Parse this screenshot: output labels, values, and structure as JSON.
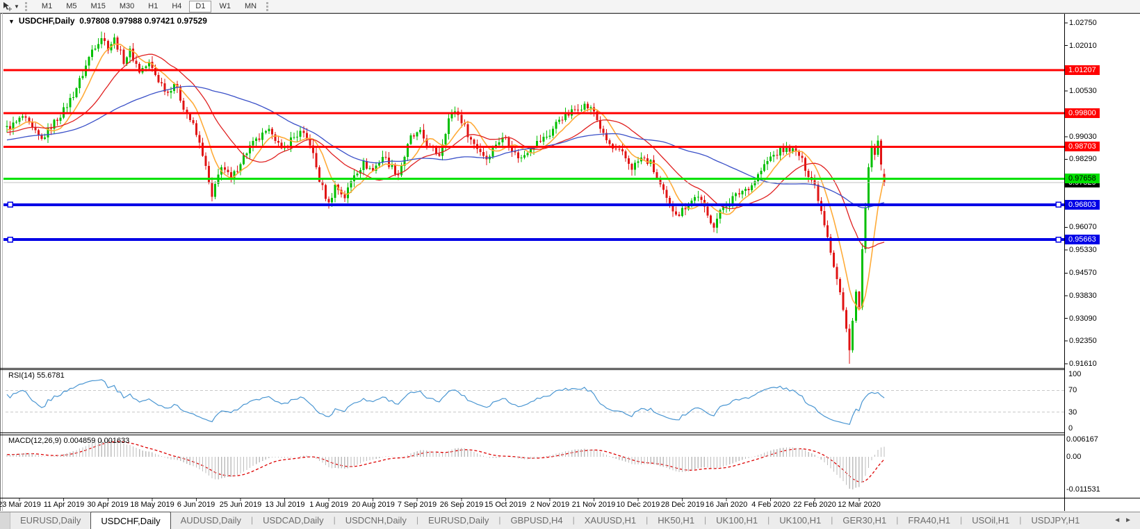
{
  "toolbar": {
    "tool_icon": "cursor-crosshair-icon",
    "dropdown_icon": "caret-down-icon",
    "timeframes": [
      "M1",
      "M5",
      "M15",
      "M30",
      "H1",
      "H4",
      "D1",
      "W1",
      "MN"
    ],
    "active_timeframe": "D1"
  },
  "chart": {
    "title": {
      "symbol": "USDCHF,Daily",
      "open": "0.97808",
      "high": "0.97988",
      "low": "0.97421",
      "close": "0.97529"
    },
    "price_axis": {
      "ticks": [
        "1.02750",
        "1.02010",
        "1.00530",
        "0.99030",
        "0.98290",
        "0.96070",
        "0.95330",
        "0.94570",
        "0.93830",
        "0.93090",
        "0.92350",
        "0.91610"
      ]
    },
    "hlines": [
      {
        "label": "1.01207",
        "price": 1.01207,
        "color": "#ff0000",
        "text_color": "#ffffff",
        "width": 3,
        "handles": false
      },
      {
        "label": "0.99800",
        "price": 0.998,
        "color": "#ff0000",
        "text_color": "#ffffff",
        "width": 3,
        "handles": false
      },
      {
        "label": "0.98703",
        "price": 0.98703,
        "color": "#ff0000",
        "text_color": "#ffffff",
        "width": 3,
        "handles": false
      },
      {
        "label": "0.97658",
        "price": 0.97658,
        "color": "#00e100",
        "text_color": "#000000",
        "width": 3,
        "handles": false
      },
      {
        "label": "0.96803",
        "price": 0.96803,
        "color": "#0000e6",
        "text_color": "#ffffff",
        "width": 4,
        "handles": true
      },
      {
        "label": "0.95663",
        "price": 0.95663,
        "color": "#0000e6",
        "text_color": "#ffffff",
        "width": 4,
        "handles": true
      }
    ],
    "current_price": {
      "label": "0.97529",
      "price": 0.97529,
      "line_color": "#c0c0c0",
      "bg": "#000000",
      "text_color": "#ffffff"
    },
    "date_axis": {
      "labels": [
        "23 Mar 2019",
        "11 Apr 2019",
        "30 Apr 2019",
        "18 May 2019",
        "6 Jun 2019",
        "25 Jun 2019",
        "13 Jul 2019",
        "1 Aug 2019",
        "20 Aug 2019",
        "7 Sep 2019",
        "26 Sep 2019",
        "15 Oct 2019",
        "2 Nov 2019",
        "21 Nov 2019",
        "10 Dec 2019",
        "28 Dec 2019",
        "16 Jan 2020",
        "4 Feb 2020",
        "22 Feb 2020",
        "12 Mar 2020"
      ]
    }
  },
  "indicators": {
    "rsi": {
      "name": "RSI(14)",
      "value": "55.6781",
      "levels": [
        "100",
        "70",
        "30",
        "0"
      ],
      "line_color": "#4a96d2"
    },
    "macd": {
      "name": "MACD(12,26,9)",
      "values": "0.004859 0.001633",
      "scale": [
        "0.006167",
        "0.00",
        "-0.011531"
      ],
      "histogram_color": "#bdbdbd",
      "signal_color": "#dd0000"
    }
  },
  "tabs": {
    "items": [
      "EURUSD,Daily",
      "USDCHF,Daily",
      "AUDUSD,Daily",
      "USDCAD,Daily",
      "USDCNH,Daily",
      "EURUSD,Daily",
      "GBPUSD,H4",
      "XAUUSD,H1",
      "HK50,H1",
      "UK100,H1",
      "UK100,H1",
      "GER30,H1",
      "FRA40,H1",
      "USOil,H1",
      "USDJPY,H1"
    ],
    "active_index": 1,
    "left_arrow": "left-scroll-arrow",
    "right_arrow": "right-scroll-arrow"
  },
  "chart_data": {
    "type": "candlestick",
    "symbol": "USDCHF",
    "timeframe": "Daily",
    "count": 279,
    "bull_color": "#00bf00",
    "bear_color": "#e01414",
    "moving_averages": [
      {
        "period": 8,
        "color": "#ffab38"
      },
      {
        "period": 21,
        "color": "#e02020"
      },
      {
        "period": 55,
        "color": "#3a50c8"
      }
    ],
    "crash_low": {
      "index": 267,
      "price": 0.9161
    },
    "peak_high": {
      "index": 30,
      "price": 1.0247
    },
    "last_candle": {
      "open": 0.97808,
      "high": 0.97988,
      "low": 0.97421,
      "close": 0.97529
    },
    "anchors": [
      [
        0,
        0.993
      ],
      [
        3,
        0.9948
      ],
      [
        5,
        0.9968
      ],
      [
        8,
        0.9925
      ],
      [
        11,
        0.9892
      ],
      [
        14,
        0.9938
      ],
      [
        18,
        0.9988
      ],
      [
        21,
        1.0042
      ],
      [
        24,
        1.0108
      ],
      [
        27,
        1.0188
      ],
      [
        30,
        1.023
      ],
      [
        32,
        1.0196
      ],
      [
        34,
        1.0222
      ],
      [
        37,
        1.0152
      ],
      [
        39,
        1.0182
      ],
      [
        42,
        1.0118
      ],
      [
        45,
        1.0142
      ],
      [
        48,
        1.0088
      ],
      [
        51,
        1.0048
      ],
      [
        53,
        1.008
      ],
      [
        56,
        1.0002
      ],
      [
        59,
        0.9938
      ],
      [
        62,
        0.9848
      ],
      [
        65,
        0.9702
      ],
      [
        68,
        0.9812
      ],
      [
        71,
        0.976
      ],
      [
        74,
        0.9822
      ],
      [
        77,
        0.987
      ],
      [
        81,
        0.9906
      ],
      [
        84,
        0.9922
      ],
      [
        87,
        0.9855
      ],
      [
        90,
        0.9894
      ],
      [
        93,
        0.9916
      ],
      [
        96,
        0.9882
      ],
      [
        99,
        0.9762
      ],
      [
        102,
        0.9682
      ],
      [
        104,
        0.9744
      ],
      [
        107,
        0.9706
      ],
      [
        110,
        0.9782
      ],
      [
        113,
        0.9814
      ],
      [
        116,
        0.9792
      ],
      [
        119,
        0.984
      ],
      [
        122,
        0.9802
      ],
      [
        124,
        0.978
      ],
      [
        128,
        0.99
      ],
      [
        131,
        0.9914
      ],
      [
        134,
        0.9864
      ],
      [
        137,
        0.9846
      ],
      [
        140,
        0.9962
      ],
      [
        142,
        0.999
      ],
      [
        144,
        0.9956
      ],
      [
        147,
        0.9892
      ],
      [
        150,
        0.9856
      ],
      [
        152,
        0.9832
      ],
      [
        155,
        0.9882
      ],
      [
        158,
        0.9902
      ],
      [
        161,
        0.9846
      ],
      [
        163,
        0.9832
      ],
      [
        166,
        0.9872
      ],
      [
        169,
        0.989
      ],
      [
        172,
        0.9912
      ],
      [
        175,
        0.9962
      ],
      [
        178,
        0.9976
      ],
      [
        181,
        1.0
      ],
      [
        183,
        1.0006
      ],
      [
        186,
        0.9986
      ],
      [
        189,
        0.9906
      ],
      [
        192,
        0.9862
      ],
      [
        195,
        0.9846
      ],
      [
        198,
        0.9802
      ],
      [
        201,
        0.9832
      ],
      [
        204,
        0.9816
      ],
      [
        207,
        0.9742
      ],
      [
        210,
        0.9672
      ],
      [
        213,
        0.9652
      ],
      [
        216,
        0.9686
      ],
      [
        219,
        0.9712
      ],
      [
        222,
        0.9642
      ],
      [
        224,
        0.9616
      ],
      [
        227,
        0.9674
      ],
      [
        230,
        0.9702
      ],
      [
        233,
        0.9726
      ],
      [
        236,
        0.9746
      ],
      [
        239,
        0.9792
      ],
      [
        242,
        0.9836
      ],
      [
        245,
        0.9856
      ],
      [
        248,
        0.9864
      ],
      [
        251,
        0.9842
      ],
      [
        254,
        0.9782
      ],
      [
        256,
        0.9744
      ],
      [
        258,
        0.9662
      ],
      [
        260,
        0.9582
      ],
      [
        262,
        0.9482
      ],
      [
        264,
        0.9392
      ],
      [
        266,
        0.9272
      ],
      [
        267,
        0.9215
      ],
      [
        268,
        0.9302
      ],
      [
        269,
        0.9392
      ],
      [
        270,
        0.9342
      ],
      [
        271,
        0.9532
      ],
      [
        272,
        0.9662
      ],
      [
        273,
        0.9792
      ],
      [
        274,
        0.9882
      ],
      [
        275,
        0.9832
      ],
      [
        276,
        0.9888
      ],
      [
        277,
        0.9802
      ],
      [
        278,
        0.97529
      ]
    ]
  }
}
